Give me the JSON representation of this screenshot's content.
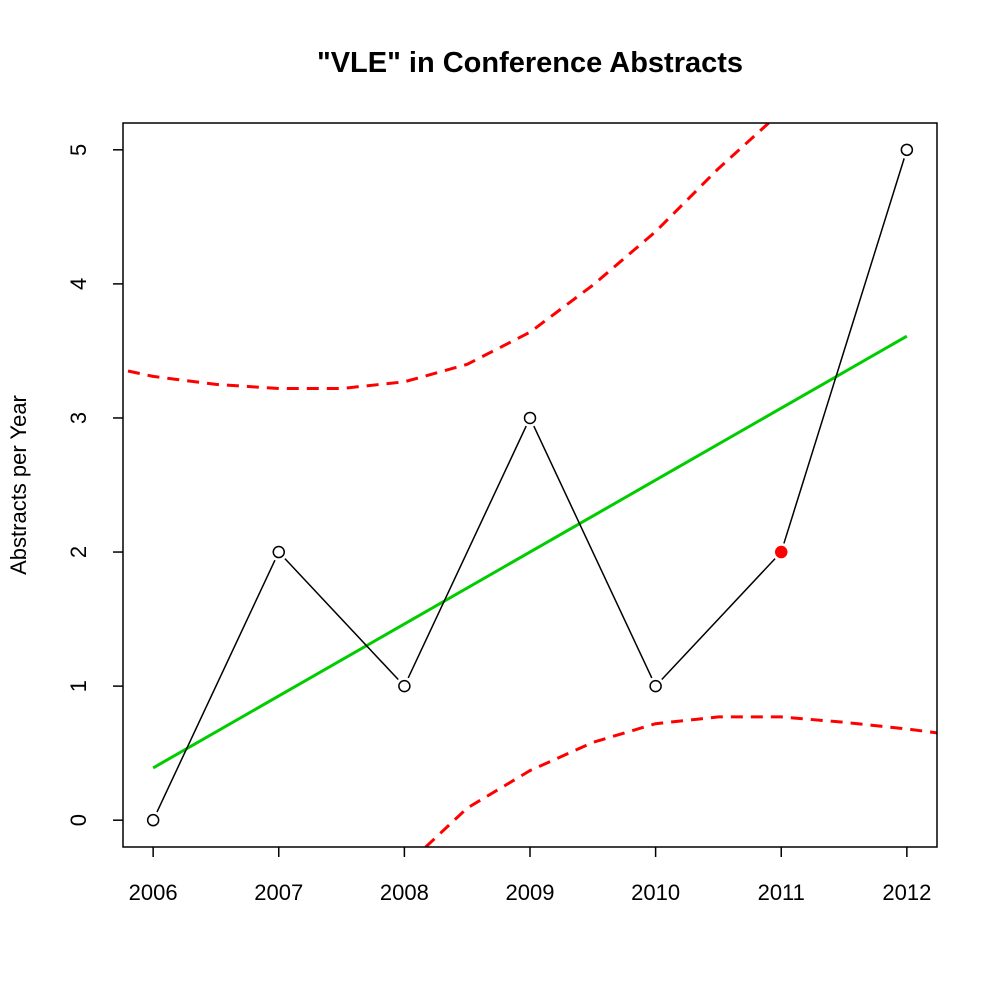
{
  "chart_data": {
    "type": "line",
    "title": "\"VLE\" in Conference Abstracts",
    "xlabel": "",
    "ylabel": "Abstracts per Year",
    "x": [
      2006,
      2007,
      2008,
      2009,
      2010,
      2011,
      2012
    ],
    "series": [
      {
        "values": [
          0,
          2,
          1,
          3,
          1,
          2,
          5
        ],
        "color": "#000000",
        "marker": "open-circle",
        "highlight": {
          "x": 2011,
          "y": 2,
          "color": "#ff0000",
          "marker": "filled-circle"
        }
      }
    ],
    "trend_line": {
      "color": "#00cd00",
      "x": [
        2006,
        2012
      ],
      "y": [
        0.39,
        3.61
      ]
    },
    "confidence_band": {
      "color": "#ff0000",
      "style": "dashed",
      "upper": {
        "x": [
          2005.8,
          2006,
          2006.5,
          2007,
          2007.5,
          2008,
          2008.5,
          2009,
          2009.5,
          2010,
          2010.5,
          2010.9
        ],
        "y": [
          3.35,
          3.31,
          3.25,
          3.22,
          3.22,
          3.27,
          3.4,
          3.64,
          3.99,
          4.39,
          4.86,
          5.2
        ]
      },
      "lower": {
        "x": [
          2008.17,
          2008.5,
          2009,
          2009.5,
          2010,
          2010.5,
          2011,
          2011.5,
          2012,
          2012.25
        ],
        "y": [
          -0.2,
          0.09,
          0.37,
          0.58,
          0.72,
          0.77,
          0.77,
          0.73,
          0.68,
          0.65
        ]
      }
    },
    "xticks": [
      "2006",
      "2007",
      "2008",
      "2009",
      "2010",
      "2011",
      "2012"
    ],
    "yticks": [
      "0",
      "1",
      "2",
      "3",
      "4",
      "5"
    ],
    "xlim": [
      2005.76,
      2012.24
    ],
    "ylim": [
      -0.2,
      5.2
    ],
    "grid": false,
    "legend": "none"
  }
}
